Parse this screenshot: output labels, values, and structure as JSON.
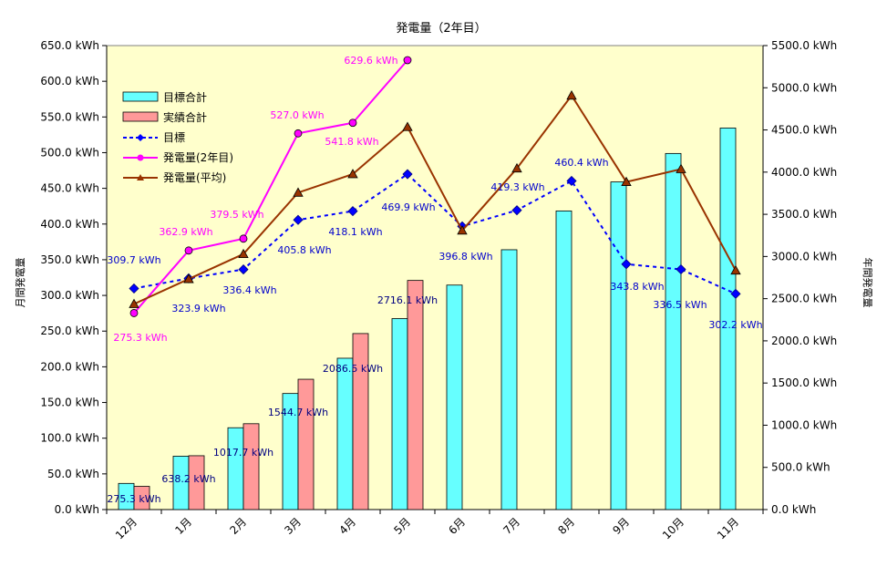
{
  "chart_data": {
    "type": "bar",
    "title": "発電量（2年目）",
    "ylabel_left": "月間発電量",
    "ylabel_right": "年間発電量",
    "categories": [
      "12月",
      "1月",
      "2月",
      "3月",
      "4月",
      "5月",
      "6月",
      "7月",
      "8月",
      "9月",
      "10月",
      "11月"
    ],
    "left_axis": {
      "min": 0,
      "max": 650,
      "step": 50,
      "tick_labels": [
        "0.0 kWh",
        "50.0 kWh",
        "100.0 kWh",
        "150.0 kWh",
        "200.0 kWh",
        "250.0 kWh",
        "300.0 kWh",
        "350.0 kWh",
        "400.0 kWh",
        "450.0 kWh",
        "500.0 kWh",
        "550.0 kWh",
        "600.0 kWh",
        "650.0 kWh"
      ]
    },
    "right_axis": {
      "min": 0,
      "max": 5500,
      "step": 500,
      "tick_labels": [
        "0.0 kWh",
        "500.0 kWh",
        "1000.0 kWh",
        "1500.0 kWh",
        "2000.0 kWh",
        "2500.0 kWh",
        "3000.0 kWh",
        "3500.0 kWh",
        "4000.0 kWh",
        "4500.0 kWh",
        "5000.0 kWh",
        "5500.0 kWh"
      ]
    },
    "series": [
      {
        "name": "目標合計",
        "kind": "bar",
        "axis": "right",
        "color": "#66ffff",
        "values": [
          310,
          633,
          970,
          1376,
          1794,
          2264,
          2661,
          3080,
          3540,
          3884,
          4221,
          4523
        ]
      },
      {
        "name": "実績合計",
        "kind": "bar",
        "axis": "right",
        "color": "#ff9999",
        "values": [
          275.3,
          638.2,
          1017.7,
          1544.7,
          2086.5,
          2716.1,
          null,
          null,
          null,
          null,
          null,
          null
        ],
        "data_labels": [
          "275.3 kWh",
          "638.2 kWh",
          "1017.7 kWh",
          "1544.7 kWh",
          "2086.5 kWh",
          "2716.1 kWh",
          "",
          "",
          "",
          "",
          "",
          ""
        ]
      },
      {
        "name": "目標",
        "kind": "line-dashed",
        "axis": "left",
        "color": "#0000ff",
        "values": [
          309.7,
          323.9,
          336.4,
          405.8,
          418.1,
          469.9,
          396.8,
          419.3,
          460.4,
          343.8,
          336.5,
          302.2
        ],
        "data_labels": [
          "309.7 kWh",
          "323.9 kWh",
          "336.4 kWh",
          "405.8 kWh",
          "418.1 kWh",
          "469.9 kWh",
          "396.8 kWh",
          "419.3 kWh",
          "460.4 kWh",
          "343.8 kWh",
          "336.5 kWh",
          "302.2 kWh"
        ]
      },
      {
        "name": "発電量(2年目)",
        "kind": "line",
        "axis": "left",
        "color": "#ff00ff",
        "values": [
          275.3,
          362.9,
          379.5,
          527.0,
          541.8,
          629.6,
          null,
          null,
          null,
          null,
          null,
          null
        ],
        "data_labels": [
          "275.3 kWh",
          "362.9 kWh",
          "379.5 kWh",
          "527.0 kWh",
          "541.8 kWh",
          "629.6 kWh",
          "",
          "",
          "",
          "",
          "",
          ""
        ]
      },
      {
        "name": "発電量(平均)",
        "kind": "line",
        "axis": "left",
        "color": "#993300",
        "values": [
          288,
          323,
          358,
          444,
          470,
          536,
          391,
          478,
          580,
          459,
          477,
          335
        ]
      }
    ],
    "legend_position": "top-left",
    "plot_background": "#ffffcc",
    "grid": false
  }
}
